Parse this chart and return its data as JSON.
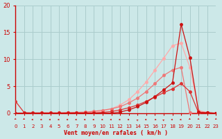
{
  "xlabel": "Vent moyen/en rafales ( km/h )",
  "bg_color": "#cce8e8",
  "grid_color": "#aacccc",
  "xlim": [
    0,
    23
  ],
  "ylim": [
    0,
    20
  ],
  "xticks": [
    0,
    1,
    2,
    3,
    4,
    5,
    6,
    7,
    8,
    9,
    10,
    11,
    12,
    13,
    14,
    15,
    16,
    17,
    18,
    19,
    20,
    21,
    22,
    23
  ],
  "yticks": [
    0,
    5,
    10,
    15,
    20
  ],
  "line1_x": [
    0,
    1,
    2,
    3,
    4,
    5,
    6,
    7,
    8,
    9,
    10,
    11,
    12,
    13,
    14,
    15,
    16,
    17,
    18,
    19,
    20,
    21,
    22,
    23
  ],
  "line1_y": [
    0.0,
    0.0,
    0.0,
    0.0,
    0.0,
    0.0,
    0.0,
    0.0,
    0.0,
    0.0,
    0.0,
    0.0,
    0.2,
    0.6,
    1.2,
    2.0,
    3.1,
    4.3,
    5.6,
    16.5,
    10.3,
    0.2,
    0.1,
    0.0
  ],
  "line2_x": [
    0,
    1,
    2,
    3,
    4,
    5,
    6,
    7,
    8,
    9,
    10,
    11,
    12,
    13,
    14,
    15,
    16,
    17,
    18,
    19,
    20,
    21,
    22,
    23
  ],
  "line2_y": [
    0.0,
    0.0,
    0.0,
    0.05,
    0.05,
    0.05,
    0.05,
    0.05,
    0.05,
    0.2,
    0.4,
    0.8,
    1.5,
    2.5,
    4.0,
    5.8,
    8.0,
    10.2,
    12.5,
    13.0,
    8.5,
    0.5,
    0.1,
    0.0
  ],
  "line3_x": [
    0,
    1,
    2,
    3,
    4,
    5,
    6,
    7,
    8,
    9,
    10,
    11,
    12,
    13,
    14,
    15,
    16,
    17,
    18,
    19,
    20,
    21,
    22,
    23
  ],
  "line3_y": [
    0.0,
    0.0,
    0.0,
    0.0,
    0.0,
    0.0,
    0.1,
    0.15,
    0.2,
    0.35,
    0.55,
    0.8,
    1.2,
    1.9,
    2.8,
    4.0,
    5.5,
    7.0,
    8.0,
    8.5,
    0.05,
    0.0,
    0.0,
    0.0
  ],
  "line4_x": [
    0,
    1,
    2,
    3,
    4,
    5,
    6,
    7,
    8,
    9,
    10,
    11,
    12,
    13,
    14,
    15,
    16,
    17,
    18,
    19,
    20,
    21,
    22,
    23
  ],
  "line4_y": [
    2.2,
    0.1,
    0.05,
    0.05,
    0.05,
    0.05,
    0.05,
    0.05,
    0.05,
    0.05,
    0.15,
    0.3,
    0.6,
    1.0,
    1.5,
    2.2,
    3.0,
    3.8,
    4.5,
    5.5,
    4.0,
    0.05,
    0.05,
    0.0
  ],
  "color1": "#cc1111",
  "color2": "#ffaaaa",
  "color3": "#ee7777",
  "color4": "#dd3333",
  "axis_color": "#cc0000",
  "label_color": "#cc0000",
  "arrow_angles": [
    225,
    225,
    270,
    270,
    270,
    270,
    270,
    270,
    270,
    270,
    270,
    270,
    270,
    270,
    315,
    270,
    90,
    315,
    270,
    270,
    225,
    225,
    225,
    225
  ]
}
